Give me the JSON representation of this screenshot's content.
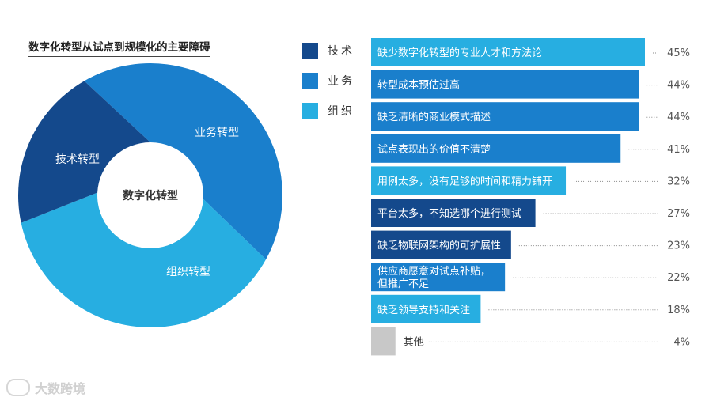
{
  "title": "数字化转型从试点到规模化的主要障碍",
  "watermark": "大数跨境",
  "colors": {
    "tech": "#14498c",
    "business": "#1a7fcc",
    "org": "#27aee1",
    "other": "#c8c8c8"
  },
  "donut": {
    "center_label": "数字化转型",
    "segments": [
      {
        "label": "技术转型",
        "category": "tech"
      },
      {
        "label": "业务转型",
        "category": "business"
      },
      {
        "label": "组织转型",
        "category": "org"
      }
    ]
  },
  "legend": [
    {
      "label": "技术",
      "category": "tech"
    },
    {
      "label": "业务",
      "category": "business"
    },
    {
      "label": "组织",
      "category": "org"
    }
  ],
  "chart_data": {
    "type": "bar",
    "title": "数字化转型从试点到规模化的主要障碍",
    "orientation": "horizontal",
    "categories": [
      "缺少数字化转型的专业人才和方法论",
      "转型成本预估过高",
      "缺乏清晰的商业模式描述",
      "试点表现出的价值不清楚",
      "用例太多，没有足够的时间和精力铺开",
      "平台太多，不知选哪个进行测试",
      "缺乏物联网架构的可扩展性",
      "供应商愿意对试点补贴，\n但推广不足",
      "缺乏领导支持和关注",
      "其他"
    ],
    "values": [
      45,
      44,
      44,
      41,
      32,
      27,
      23,
      22,
      18,
      4
    ],
    "bar_category": [
      "org",
      "business",
      "business",
      "business",
      "org",
      "tech",
      "tech",
      "business",
      "org",
      "other"
    ],
    "value_suffix": "%",
    "legend": [
      "技术",
      "业务",
      "组织"
    ],
    "legend_placement": "left-of-bars",
    "grid": false
  }
}
